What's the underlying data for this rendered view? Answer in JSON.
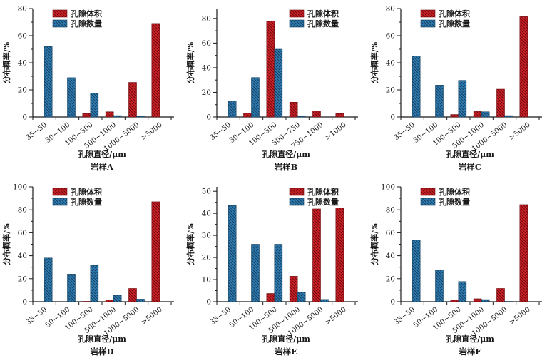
{
  "figure": {
    "background": "#ffffff",
    "series_colors": {
      "volume": "#cf2127",
      "count": "#2f7fb7"
    },
    "hatch_colors": {
      "volume": "#6e0c10",
      "count": "#16405f"
    }
  },
  "chart_data": [
    {
      "type": "bar",
      "title": "岩样A",
      "xlabel": "孔隙直径/μm",
      "ylabel": "分布概率/%",
      "categories": [
        "35~50",
        "50~100",
        "100~500",
        "500~1000",
        "1000~5000",
        ">5000"
      ],
      "series": [
        {
          "name": "孔隙体积",
          "color": "#cf2127",
          "hatch": "#6e0c10",
          "values": [
            0,
            0,
            2.5,
            3.8,
            25.5,
            69
          ]
        },
        {
          "name": "孔隙数量",
          "color": "#2f7fb7",
          "hatch": "#16405f",
          "values": [
            52,
            29,
            17.5,
            1,
            0.5,
            0
          ]
        }
      ],
      "ylim": [
        0,
        80
      ],
      "ytick_max": 80,
      "ytick_step": 20,
      "grid": false,
      "legend_pos": "left"
    },
    {
      "type": "bar",
      "title": "岩样B",
      "xlabel": "孔隙直径/μm",
      "ylabel": "分布概率/%",
      "categories": [
        "35~50",
        "50~100",
        "100~500",
        "500~750",
        "750~1000",
        ">1000"
      ],
      "series": [
        {
          "name": "孔隙体积",
          "color": "#cf2127",
          "hatch": "#6e0c10",
          "values": [
            0,
            3,
            78,
            12,
            5,
            2.8
          ]
        },
        {
          "name": "孔隙数量",
          "color": "#2f7fb7",
          "hatch": "#16405f",
          "values": [
            13,
            32,
            55,
            0.5,
            0,
            0
          ]
        }
      ],
      "ylim": [
        0,
        88
      ],
      "ytick_max": 80,
      "ytick_step": 20,
      "grid": false,
      "legend_pos": "right"
    },
    {
      "type": "bar",
      "title": "岩样C",
      "xlabel": "孔隙直径/μm",
      "ylabel": "分布概率/%",
      "categories": [
        "35~50",
        "50~100",
        "100~500",
        "500~1000",
        "1000~5000",
        ">5000"
      ],
      "series": [
        {
          "name": "孔隙体积",
          "color": "#cf2127",
          "hatch": "#6e0c10",
          "values": [
            0,
            0,
            1.8,
            4,
            20.5,
            74
          ]
        },
        {
          "name": "孔隙数量",
          "color": "#2f7fb7",
          "hatch": "#16405f",
          "values": [
            45,
            23.5,
            27,
            3.8,
            1,
            0
          ]
        }
      ],
      "ylim": [
        0,
        80
      ],
      "ytick_max": 80,
      "ytick_step": 20,
      "grid": false,
      "legend_pos": "left"
    },
    {
      "type": "bar",
      "title": "岩样D",
      "xlabel": "孔隙直径/μm",
      "ylabel": "分布概率/%",
      "categories": [
        "35~50",
        "50~100",
        "100~500",
        "500~1000",
        "1000~5000",
        ">5000"
      ],
      "series": [
        {
          "name": "孔隙体积",
          "color": "#cf2127",
          "hatch": "#6e0c10",
          "values": [
            0,
            0,
            0.3,
            1.3,
            11.5,
            87
          ]
        },
        {
          "name": "孔隙数量",
          "color": "#2f7fb7",
          "hatch": "#16405f",
          "values": [
            38,
            24,
            31.5,
            5.5,
            2.2,
            0
          ]
        }
      ],
      "ylim": [
        0,
        100
      ],
      "ytick_max": 100,
      "ytick_step": 20,
      "grid": false,
      "legend_pos": "left"
    },
    {
      "type": "bar",
      "title": "岩样E",
      "xlabel": "孔隙直径/μm",
      "ylabel": "分布概率/%",
      "categories": [
        "35~50",
        "50~100",
        "100~500",
        "500~1000",
        "1000~5000",
        ">5000"
      ],
      "series": [
        {
          "name": "孔隙体积",
          "color": "#cf2127",
          "hatch": "#6e0c10",
          "values": [
            0,
            0,
            3.7,
            11.5,
            42,
            42.5
          ]
        },
        {
          "name": "孔隙数量",
          "color": "#2f7fb7",
          "hatch": "#16405f",
          "values": [
            43.5,
            26,
            26,
            4.2,
            1,
            0
          ]
        }
      ],
      "ylim": [
        0,
        52
      ],
      "ytick_max": 50,
      "ytick_step": 10,
      "grid": false,
      "legend_pos": "right"
    },
    {
      "type": "bar",
      "title": "岩样F",
      "xlabel": "孔隙直径/μm",
      "ylabel": "分布概率/%",
      "categories": [
        "35~50",
        "50~100",
        "100~500",
        "500~1000",
        "1000~5000",
        ">5000"
      ],
      "series": [
        {
          "name": "孔隙体积",
          "color": "#cf2127",
          "hatch": "#6e0c10",
          "values": [
            0,
            0,
            1.2,
            2.5,
            11.5,
            84.5
          ]
        },
        {
          "name": "孔隙数量",
          "color": "#2f7fb7",
          "hatch": "#16405f",
          "values": [
            53.5,
            27.5,
            17.5,
            1.8,
            0.3,
            0
          ]
        }
      ],
      "ylim": [
        0,
        100
      ],
      "ytick_max": 100,
      "ytick_step": 20,
      "grid": false,
      "legend_pos": "left"
    }
  ]
}
